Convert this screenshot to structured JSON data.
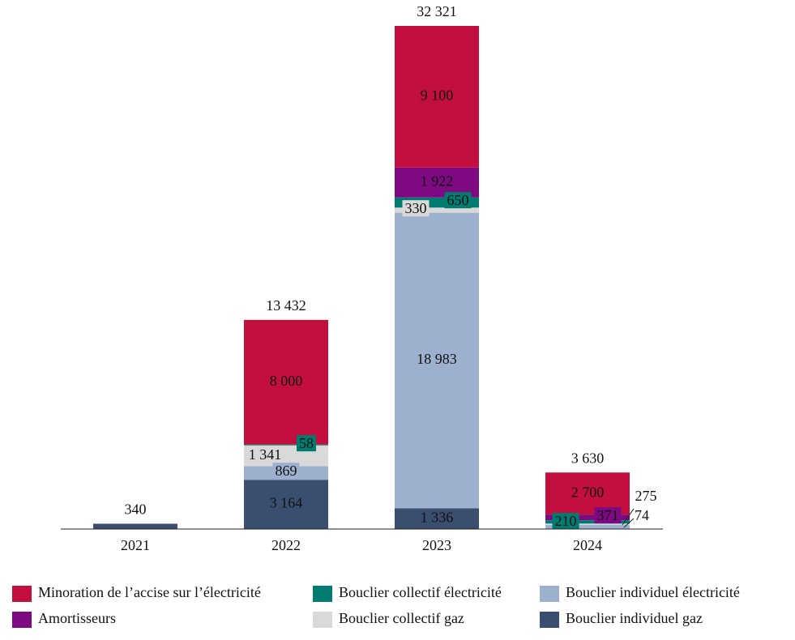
{
  "chart_data": {
    "type": "stacked-bar",
    "categories": [
      "2021",
      "2022",
      "2023",
      "2024"
    ],
    "series": [
      {
        "name": "Minoration de l’accise sur l’électricité",
        "color": "#c20f3e",
        "values": [
          null,
          8000,
          9100,
          2700
        ],
        "value_labels": [
          null,
          "8 000",
          "9 100",
          "2 700"
        ]
      },
      {
        "name": "Bouclier collectif électricité",
        "color": "#007b6f",
        "values": [
          null,
          58,
          650,
          210
        ]
      },
      {
        "name": "Bouclier individuel électricité",
        "color": "#9db1cf",
        "values": [
          null,
          869,
          18983,
          275
        ],
        "value_labels": [
          null,
          "869",
          "18 983",
          "275"
        ]
      },
      {
        "name": "Amortisseurs",
        "color": "#7d0a82",
        "values": [
          null,
          null,
          1922,
          371
        ],
        "value_labels": [
          null,
          null,
          "1 922",
          "371"
        ]
      },
      {
        "name": "Bouclier collectif gaz",
        "color": "#d9d9d9",
        "values": [
          null,
          1341,
          330,
          74
        ],
        "value_labels": [
          null,
          "1 341",
          "330",
          "74"
        ]
      },
      {
        "name": "Bouclier individuel gaz",
        "color": "#3a4e6f",
        "values": [
          340,
          3164,
          1336,
          null
        ],
        "value_labels": [
          null,
          "3 164",
          "1 336",
          null
        ]
      }
    ],
    "totals": [
      340,
      13432,
      32321,
      3630
    ],
    "total_labels": [
      "340",
      "13 432",
      "32 321",
      "3 630"
    ]
  }
}
